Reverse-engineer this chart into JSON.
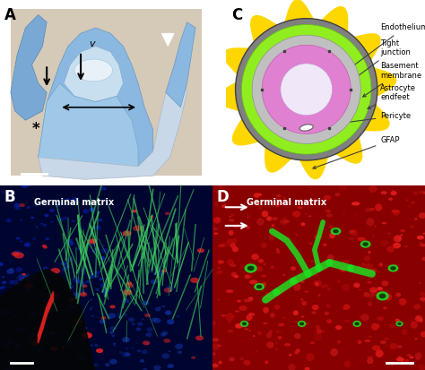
{
  "panels": {
    "A": {
      "label": "A",
      "bg_color": "#d8cfc0",
      "label_color": "black"
    },
    "B": {
      "label": "B",
      "title": "Germinal matrix",
      "bg_color": "#000020",
      "label_color": "white",
      "title_color": "white"
    },
    "C": {
      "label": "C",
      "bg_color": "white",
      "label_color": "black",
      "layers": {
        "outer_bg": "#f0f0f0",
        "yellow_bg": "#FFD700",
        "gray_outer": "#a0a0a0",
        "pink_layer": "#E080C0",
        "gray_mid": "#b0b0b0",
        "green_layer": "#80FF00",
        "inner_gray": "#c0c0c0",
        "lumen": "white",
        "pericyte": "white"
      },
      "labels": [
        "Endothelium",
        "Tight\njunction",
        "Basement\nmembrane",
        "Astrocyte\nendfeet",
        "Pericyte",
        "GFAP"
      ]
    },
    "D": {
      "label": "D",
      "title": "Germinal matrix",
      "bg_color": "#8B0000",
      "label_color": "white",
      "title_color": "white"
    }
  },
  "figure_bg": "#ffffff",
  "dpi": 100,
  "figsize": [
    4.74,
    4.13
  ]
}
